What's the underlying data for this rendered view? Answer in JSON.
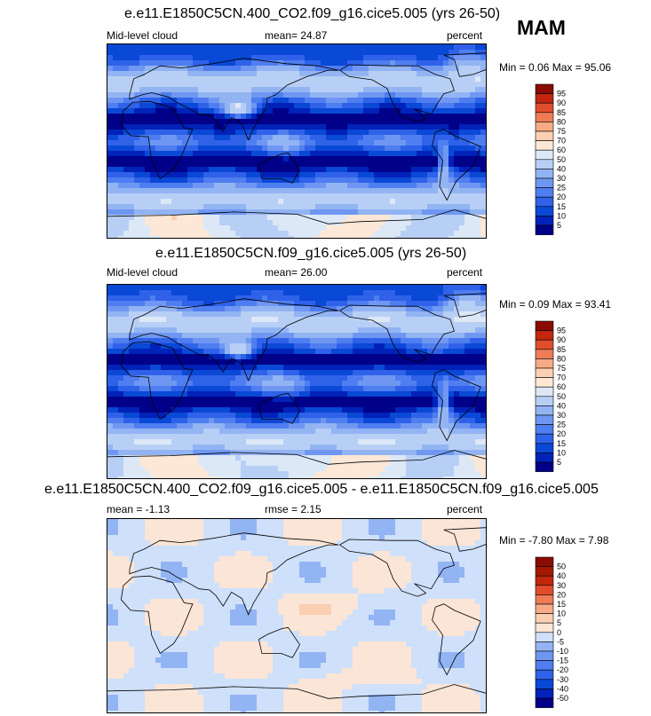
{
  "season": "MAM",
  "chart_data": [
    {
      "type": "heatmap",
      "title": "e.e11.E1850C5CN.400_CO2.f09_g16.cice5.005 (yrs 26-50)",
      "left_label": "Mid-level cloud",
      "center_label": "mean=  24.87",
      "right_label": "percent",
      "minmax_label": "Min =   0.06 Max =  95.06",
      "min": 0.06,
      "max": 95.06,
      "mean": 24.87,
      "levels": [
        "5",
        "10",
        "15",
        "20",
        "25",
        "30",
        "40",
        "50",
        "60",
        "70",
        "75",
        "80",
        "85",
        "90",
        "95"
      ],
      "colors": [
        "#000089",
        "#0022b8",
        "#0a48d6",
        "#2f62e8",
        "#4f7ef0",
        "#6f97f2",
        "#93b4f3",
        "#b8cff5",
        "#dde8f7",
        "#fde7d6",
        "#fbcfb2",
        "#f6ab86",
        "#ee7c56",
        "#e04d2c",
        "#c2260f",
        "#8a0b00"
      ]
    },
    {
      "type": "heatmap",
      "title": "e.e11.E1850C5CN.f09_g16.cice5.005 (yrs 26-50)",
      "left_label": "Mid-level cloud",
      "center_label": "mean=  26.00",
      "right_label": "percent",
      "minmax_label": "Min =   0.09 Max =  93.41",
      "min": 0.09,
      "max": 93.41,
      "mean": 26.0,
      "levels": [
        "5",
        "10",
        "15",
        "20",
        "25",
        "30",
        "40",
        "50",
        "60",
        "70",
        "75",
        "80",
        "85",
        "90",
        "95"
      ],
      "colors": [
        "#000089",
        "#0022b8",
        "#0a48d6",
        "#2f62e8",
        "#4f7ef0",
        "#6f97f2",
        "#93b4f3",
        "#b8cff5",
        "#dde8f7",
        "#fde7d6",
        "#fbcfb2",
        "#f6ab86",
        "#ee7c56",
        "#e04d2c",
        "#c2260f",
        "#8a0b00"
      ]
    },
    {
      "type": "heatmap",
      "title": "e.e11.E1850C5CN.400_CO2.f09_g16.cice5.005 - e.e11.E1850C5CN.f09_g16.cice5.005",
      "left_label": "mean =  -1.13",
      "center_label": "rmse =   2.15",
      "right_label": "percent",
      "minmax_label": "Min =  -7.80 Max =   7.98",
      "min": -7.8,
      "max": 7.98,
      "mean": -1.13,
      "rmse": 2.15,
      "levels": [
        "-50",
        "-40",
        "-30",
        "-20",
        "-15",
        "-10",
        "-5",
        "0",
        "5",
        "10",
        "15",
        "20",
        "30",
        "40",
        "50"
      ],
      "colors": [
        "#000089",
        "#0022b8",
        "#0a48d6",
        "#2f62e8",
        "#4f7ef0",
        "#6f97f2",
        "#93b4f3",
        "#cfe0fa",
        "#fbe5d6",
        "#fbcfb2",
        "#f6ab86",
        "#ee7c56",
        "#e04d2c",
        "#c2260f",
        "#a51800",
        "#8a0b00"
      ]
    }
  ]
}
